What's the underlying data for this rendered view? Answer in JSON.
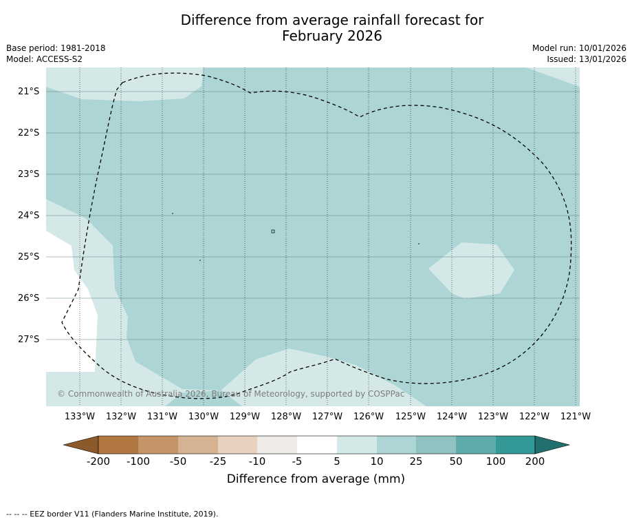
{
  "title_line1": "Difference from average rainfall forecast for",
  "title_line2": "February 2026",
  "meta_left": [
    "Base period: 1981-2018",
    "Model: ACCESS-S2"
  ],
  "meta_right": [
    "Model run: 10/01/2026",
    "Issued: 13/01/2026"
  ],
  "latitudes": [
    "21°S",
    "22°S",
    "23°S",
    "24°S",
    "25°S",
    "26°S",
    "27°S"
  ],
  "longitudes": [
    "133°W",
    "132°W",
    "131°W",
    "130°W",
    "129°W",
    "128°W",
    "127°W",
    "126°W",
    "125°W",
    "124°W",
    "123°W",
    "122°W",
    "121°W"
  ],
  "copyright": "© Commonwealth of Australia 2026, Bureau of Meteorology, supported by COSPPac",
  "colorbar": {
    "labels": [
      "-200",
      "-100",
      "-50",
      "-25",
      "-10",
      "-5",
      "5",
      "10",
      "25",
      "50",
      "100",
      "200"
    ],
    "colors": [
      "#8c5a2a",
      "#b07840",
      "#c49568",
      "#d5b291",
      "#e6d2bf",
      "#efebe6",
      "#ffffff",
      "#d4e8e8",
      "#aed5d5",
      "#8fc2c1",
      "#5fabab",
      "#339896",
      "#216f6e"
    ],
    "title": "Difference from average (mm)"
  },
  "legend_note": "--  --  -- EEZ border V11 (Flanders Marine Institute, 2019).",
  "map_colors": {
    "light": "#d4e8e8",
    "mid": "#aed5d5",
    "white": "#ffffff"
  }
}
